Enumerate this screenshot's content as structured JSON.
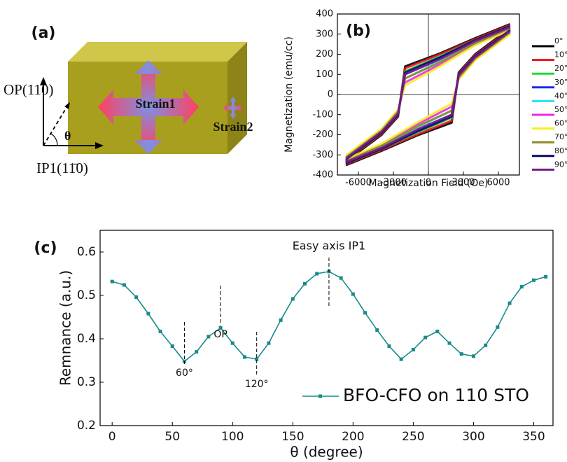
{
  "diagram": {
    "label": "(a)",
    "op_label": "OP(110)",
    "ip_label": "IP1(11̄0)",
    "angle_label": "θ",
    "strain1": "Strain1",
    "strain2": "Strain2"
  },
  "chart_data": [
    {
      "type": "line",
      "panel_label": "(b)",
      "x_label": "Magnetization Field (Oe)",
      "y_label": "Magnetization (emu/cc)",
      "x": [
        7000,
        4000,
        1000,
        -2000,
        -2600,
        -4000,
        -7000,
        -7000,
        -4000,
        -1000,
        2000,
        2600,
        4000,
        7000
      ],
      "xlim": [
        -7800,
        7800
      ],
      "xticks": [
        -6000,
        -3000,
        0,
        3000,
        6000
      ],
      "ylim": [
        -400,
        400
      ],
      "yticks": [
        -400,
        -300,
        -200,
        -100,
        0,
        100,
        200,
        300,
        400
      ],
      "zero_lines": true,
      "legend": "right",
      "series": [
        {
          "name": "0°",
          "color": "#000000",
          "values": [
            350,
            280,
            205,
            140,
            -110,
            -200,
            -330,
            -350,
            -280,
            -205,
            -140,
            110,
            200,
            330
          ]
        },
        {
          "name": "10°",
          "color": "#e8141c",
          "values": [
            345,
            275,
            200,
            130,
            -105,
            -195,
            -325,
            -345,
            -275,
            -200,
            -130,
            105,
            195,
            325
          ]
        },
        {
          "name": "20°",
          "color": "#22d83a",
          "values": [
            340,
            270,
            190,
            115,
            -100,
            -190,
            -320,
            -340,
            -270,
            -190,
            -115,
            100,
            190,
            320
          ]
        },
        {
          "name": "30°",
          "color": "#1a2ee0",
          "values": [
            335,
            265,
            180,
            100,
            -95,
            -185,
            -315,
            -335,
            -265,
            -180,
            -100,
            95,
            185,
            315
          ]
        },
        {
          "name": "40°",
          "color": "#22e8f0",
          "values": [
            330,
            255,
            165,
            80,
            -85,
            -180,
            -310,
            -330,
            -255,
            -165,
            -80,
            85,
            180,
            310
          ]
        },
        {
          "name": "50°",
          "color": "#f028e8",
          "values": [
            325,
            250,
            150,
            60,
            -80,
            -175,
            -305,
            -325,
            -250,
            -150,
            -60,
            80,
            175,
            305
          ]
        },
        {
          "name": "60°",
          "color": "#f4f020",
          "values": [
            320,
            245,
            140,
            45,
            -75,
            -170,
            -300,
            -320,
            -245,
            -140,
            -45,
            75,
            170,
            300
          ]
        },
        {
          "name": "70°",
          "color": "#8c8a28",
          "values": [
            330,
            255,
            160,
            80,
            -85,
            -180,
            -310,
            -330,
            -255,
            -160,
            -80,
            85,
            180,
            310
          ]
        },
        {
          "name": "80°",
          "color": "#0a0a6a",
          "values": [
            340,
            270,
            185,
            110,
            -100,
            -190,
            -320,
            -340,
            -270,
            -185,
            -110,
            100,
            190,
            320
          ]
        },
        {
          "name": "90°",
          "color": "#7a1a8a",
          "values": [
            335,
            265,
            175,
            100,
            -95,
            -185,
            -315,
            -335,
            -265,
            -175,
            -100,
            95,
            185,
            315
          ]
        }
      ]
    },
    {
      "type": "line",
      "panel_label": "(c)",
      "x_label": "θ (degree)",
      "y_label": "Remnance (a.u.)",
      "x": [
        0,
        10,
        20,
        30,
        40,
        50,
        60,
        70,
        80,
        90,
        100,
        110,
        120,
        130,
        140,
        150,
        160,
        170,
        180,
        190,
        200,
        210,
        220,
        230,
        240,
        250,
        260,
        270,
        280,
        290,
        300,
        310,
        320,
        330,
        340,
        350,
        360
      ],
      "xlim": [
        -10,
        366
      ],
      "xticks": [
        0,
        50,
        100,
        150,
        200,
        250,
        300,
        350
      ],
      "ylim": [
        0.2,
        0.65
      ],
      "yticks": [
        0.2,
        0.3,
        0.4,
        0.5,
        0.6
      ],
      "markers": true,
      "legend": "lower right",
      "series": [
        {
          "name": "BFO-CFO on 110 STO",
          "color": "#1a8a8a",
          "values": [
            0.532,
            0.524,
            0.496,
            0.458,
            0.417,
            0.383,
            0.348,
            0.37,
            0.405,
            0.425,
            0.39,
            0.358,
            0.353,
            0.39,
            0.443,
            0.492,
            0.527,
            0.55,
            0.555,
            0.54,
            0.503,
            0.46,
            0.42,
            0.383,
            0.353,
            0.375,
            0.403,
            0.417,
            0.39,
            0.365,
            0.36,
            0.385,
            0.427,
            0.482,
            0.52,
            0.535,
            0.543
          ]
        }
      ],
      "annotations": [
        {
          "text": "Easy axis IP1",
          "x": 180
        },
        {
          "text": "OP",
          "x": 90
        },
        {
          "text": "60°",
          "x": 60
        },
        {
          "text": "120°",
          "x": 120
        }
      ]
    }
  ]
}
